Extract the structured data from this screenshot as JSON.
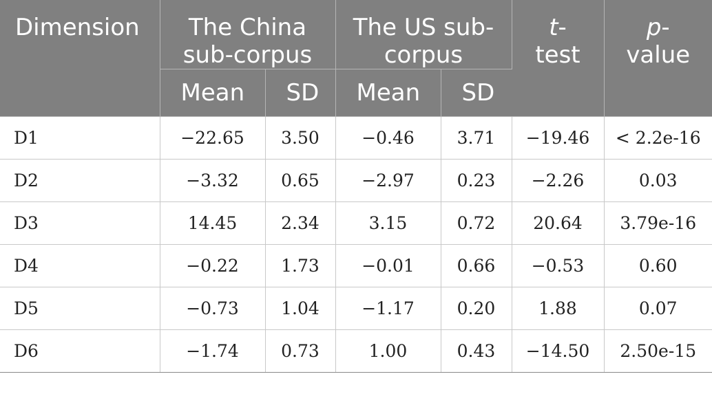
{
  "header": {
    "dimension": "Dimension",
    "china_line1": "The China",
    "china_line2": "sub-corpus",
    "us_line1": "The US sub-",
    "us_line2": "corpus",
    "ttest_italic": "t",
    "ttest_line1_rest": "-",
    "ttest_line2": "test",
    "pvalue_italic": "p",
    "pvalue_line1_rest": "-",
    "pvalue_line2": "value",
    "mean": "Mean",
    "sd": "SD"
  },
  "rows": [
    {
      "dim": "D1",
      "china_mean": "−22.65",
      "china_sd": "3.50",
      "us_mean": "−0.46",
      "us_sd": "3.71",
      "t": "−19.46",
      "p": "< 2.2e-16"
    },
    {
      "dim": "D2",
      "china_mean": "−3.32",
      "china_sd": "0.65",
      "us_mean": "−2.97",
      "us_sd": "0.23",
      "t": "−2.26",
      "p": "0.03"
    },
    {
      "dim": "D3",
      "china_mean": "14.45",
      "china_sd": "2.34",
      "us_mean": "3.15",
      "us_sd": "0.72",
      "t": "20.64",
      "p": "3.79e-16"
    },
    {
      "dim": "D4",
      "china_mean": "−0.22",
      "china_sd": "1.73",
      "us_mean": "−0.01",
      "us_sd": "0.66",
      "t": "−0.53",
      "p": "0.60"
    },
    {
      "dim": "D5",
      "china_mean": "−0.73",
      "china_sd": "1.04",
      "us_mean": "−1.17",
      "us_sd": "0.20",
      "t": "1.88",
      "p": "0.07"
    },
    {
      "dim": "D6",
      "china_mean": "−1.74",
      "china_sd": "0.73",
      "us_mean": "1.00",
      "us_sd": "0.43",
      "t": "−14.50",
      "p": "2.50e-15"
    }
  ]
}
